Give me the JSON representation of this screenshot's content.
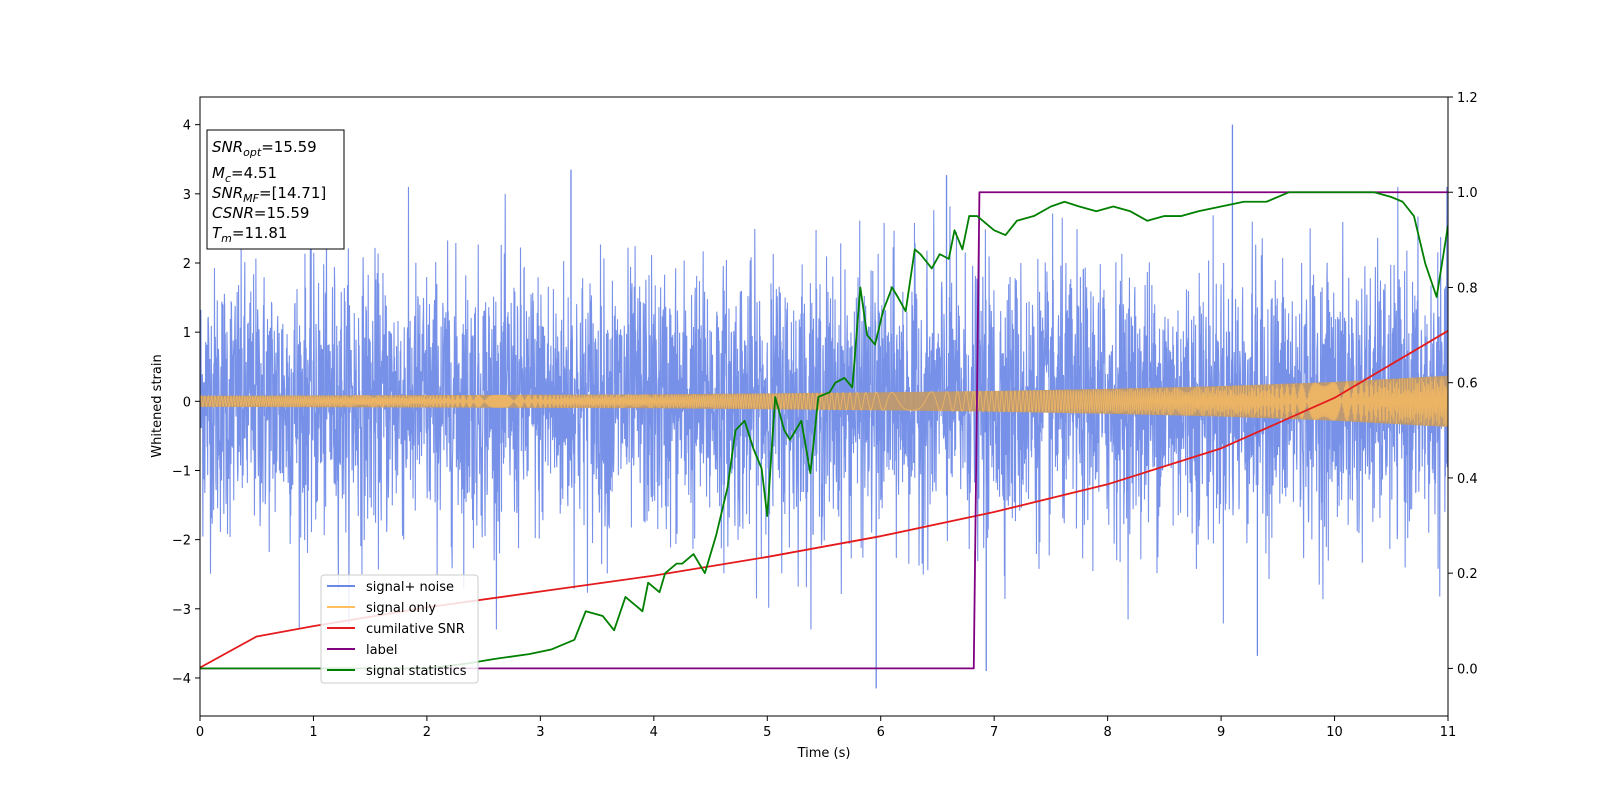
{
  "chart_data": {
    "type": "line",
    "xlabel": "Time (s)",
    "ylabel": "Whitened strain",
    "xlim": [
      0,
      11
    ],
    "ylim_left": [
      -4.55,
      4.4
    ],
    "ylim_right": [
      -0.1,
      1.2
    ],
    "x_ticks": [
      "0",
      "1",
      "2",
      "3",
      "4",
      "5",
      "6",
      "7",
      "8",
      "9",
      "10",
      "11"
    ],
    "y_left_ticks": [
      "−4",
      "−3",
      "−2",
      "−1",
      "0",
      "1",
      "2",
      "3",
      "4"
    ],
    "y_right_ticks": [
      "0.0",
      "0.2",
      "0.4",
      "0.6",
      "0.8",
      "1.0",
      "1.2"
    ],
    "legend_position": "lower-left",
    "grid": false,
    "annotation": [
      {
        "base": "SNR",
        "sub": "opt",
        "rest": "=15.59"
      },
      {
        "base": "M",
        "sub": "c",
        "rest": "=4.51"
      },
      {
        "base": "SNR",
        "sub": "MF",
        "rest": "=[14.71]"
      },
      {
        "base": "CSNR",
        "sub": "",
        "rest": "=15.59"
      },
      {
        "base": "T",
        "sub": "m",
        "rest": "=11.81"
      }
    ],
    "series": [
      {
        "name": "signal+ noise",
        "axis": "left",
        "color": "#6b88e6",
        "style": "dense noise, amplitude about ±2.5 with spikes to 4.0 near x=9.1 and -4.2 near x=5.96",
        "spikes": [
          [
            9.1,
            4.0
          ],
          [
            5.96,
            -4.15
          ],
          [
            3.27,
            3.35
          ],
          [
            6.58,
            3.27
          ],
          [
            9.32,
            -3.68
          ],
          [
            6.93,
            -3.9
          ]
        ]
      },
      {
        "name": "signal only",
        "axis": "left",
        "color": "#ffbf60",
        "envelope_x": [
          0,
          2,
          4,
          6,
          7,
          8,
          9,
          10,
          11
        ],
        "envelope_y": [
          0.08,
          0.09,
          0.1,
          0.13,
          0.15,
          0.18,
          0.22,
          0.28,
          0.37
        ]
      },
      {
        "name": "cumilative SNR",
        "axis": "left",
        "color": "#e41a1c",
        "x": [
          0,
          0.5,
          1,
          2,
          3,
          4,
          5,
          6,
          7,
          8,
          9,
          10,
          11
        ],
        "y": [
          -3.85,
          -3.4,
          -3.25,
          -2.98,
          -2.75,
          -2.52,
          -2.25,
          -1.95,
          -1.6,
          -1.2,
          -0.68,
          0.05,
          1.02
        ]
      },
      {
        "name": "label",
        "axis": "right",
        "color": "#800080",
        "x": [
          0,
          6.82,
          6.87,
          11
        ],
        "y": [
          0.0,
          0.0,
          1.0,
          1.0
        ]
      },
      {
        "name": "signal statistics",
        "axis": "right",
        "color": "#008000",
        "x": [
          0,
          1,
          2,
          2.35,
          2.6,
          2.9,
          3.1,
          3.3,
          3.4,
          3.55,
          3.65,
          3.75,
          3.85,
          3.9,
          3.95,
          4.05,
          4.1,
          4.2,
          4.25,
          4.35,
          4.45,
          4.55,
          4.65,
          4.72,
          4.8,
          4.88,
          4.95,
          5.0,
          5.07,
          5.15,
          5.2,
          5.3,
          5.38,
          5.45,
          5.55,
          5.6,
          5.68,
          5.75,
          5.82,
          5.88,
          5.95,
          6.02,
          6.1,
          6.15,
          6.22,
          6.3,
          6.35,
          6.45,
          6.52,
          6.6,
          6.65,
          6.72,
          6.78,
          6.85,
          6.9,
          7.0,
          7.1,
          7.2,
          7.35,
          7.5,
          7.62,
          7.75,
          7.9,
          8.05,
          8.2,
          8.35,
          8.5,
          8.65,
          8.8,
          9.0,
          9.2,
          9.4,
          9.6,
          9.8,
          10.0,
          10.2,
          10.35,
          10.5,
          10.6,
          10.7,
          10.8,
          10.9,
          11.0
        ],
        "y": [
          0.0,
          0.0,
          0.0,
          0.01,
          0.02,
          0.03,
          0.04,
          0.06,
          0.12,
          0.11,
          0.08,
          0.15,
          0.13,
          0.12,
          0.18,
          0.16,
          0.2,
          0.22,
          0.22,
          0.24,
          0.2,
          0.28,
          0.38,
          0.5,
          0.52,
          0.46,
          0.42,
          0.32,
          0.57,
          0.5,
          0.48,
          0.52,
          0.41,
          0.57,
          0.58,
          0.6,
          0.61,
          0.59,
          0.8,
          0.7,
          0.68,
          0.75,
          0.8,
          0.78,
          0.75,
          0.88,
          0.87,
          0.84,
          0.87,
          0.86,
          0.92,
          0.88,
          0.95,
          0.95,
          0.94,
          0.92,
          0.91,
          0.94,
          0.95,
          0.97,
          0.98,
          0.97,
          0.96,
          0.97,
          0.96,
          0.94,
          0.95,
          0.95,
          0.96,
          0.97,
          0.98,
          0.98,
          1.0,
          1.0,
          1.0,
          1.0,
          1.0,
          0.99,
          0.98,
          0.95,
          0.85,
          0.78,
          0.93
        ]
      }
    ]
  }
}
